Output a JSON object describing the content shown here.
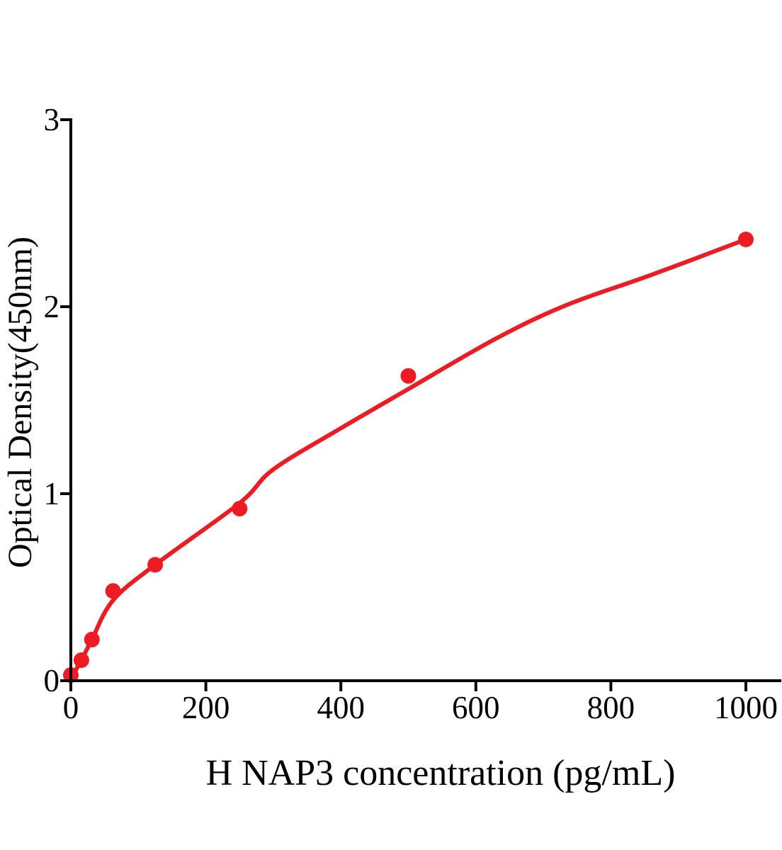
{
  "chart_data": {
    "type": "scatter",
    "title": "",
    "xlabel": "H NAP3 concentration (pg/mL)",
    "ylabel": "Optical Density(450nm)",
    "x_ticks": [
      0,
      200,
      400,
      600,
      800,
      1000
    ],
    "y_ticks": [
      0,
      1,
      2,
      3
    ],
    "xlim": [
      0,
      1052
    ],
    "ylim": [
      0,
      3
    ],
    "grid": false,
    "legend": null,
    "marker_color": "#EC1C24",
    "line_color": "#EC1C24",
    "axis_color": "#000000",
    "points": [
      [
        0,
        0.03
      ],
      [
        15.6,
        0.11
      ],
      [
        31.25,
        0.22
      ],
      [
        62.5,
        0.48
      ],
      [
        125,
        0.62
      ],
      [
        250,
        0.92
      ],
      [
        500,
        1.63
      ],
      [
        1000,
        2.36
      ]
    ],
    "fit_curve": [
      [
        0,
        0.01
      ],
      [
        15.6,
        0.11
      ],
      [
        31.25,
        0.22
      ],
      [
        62.5,
        0.43
      ],
      [
        125,
        0.62
      ],
      [
        250,
        0.95
      ],
      [
        300,
        1.13
      ],
      [
        400,
        1.35
      ],
      [
        500,
        1.56
      ],
      [
        630,
        1.83
      ],
      [
        735,
        2.01
      ],
      [
        860,
        2.17
      ],
      [
        1000,
        2.36
      ]
    ]
  }
}
